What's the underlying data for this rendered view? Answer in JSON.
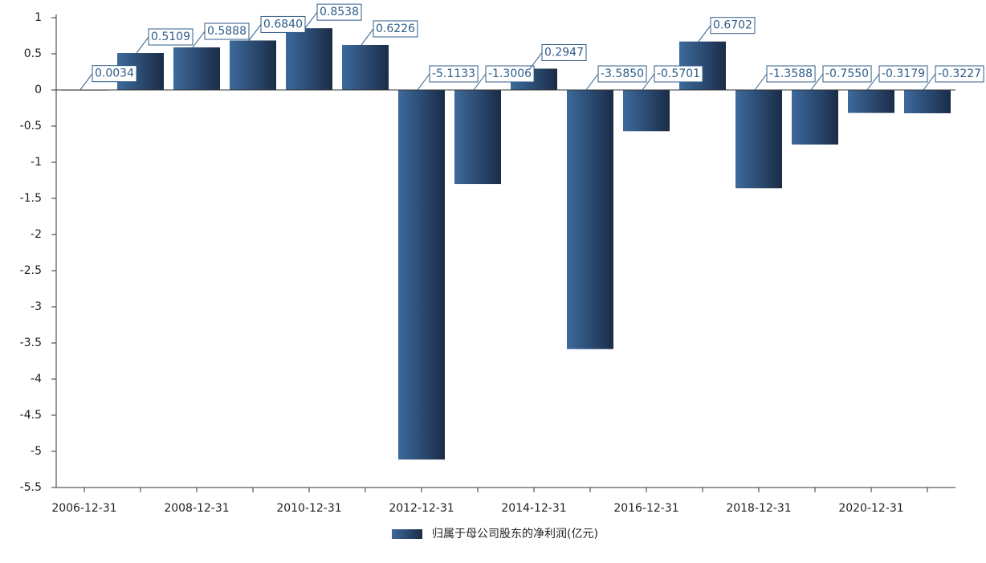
{
  "chart_data": {
    "type": "bar",
    "categories": [
      "2006-12-31",
      null,
      "2008-12-31",
      null,
      "2010-12-31",
      null,
      "2012-12-31",
      null,
      "2014-12-31",
      null,
      "2016-12-31",
      null,
      "2018-12-31",
      null,
      "2020-12-31",
      null
    ],
    "series": [
      {
        "name": "归属于母公司股东的净利润(亿元)",
        "color": "#3d6a9c",
        "values": [
          0.0034,
          0.5109,
          0.5888,
          0.684,
          0.8538,
          0.6226,
          -5.1133,
          -1.3006,
          0.2947,
          -3.585,
          -0.5701,
          0.6702,
          -1.3588,
          -0.755,
          -0.3179,
          -0.3227
        ],
        "value_labels": [
          "0.0034",
          "0.5109",
          "0.5888",
          "0.6840",
          "0.8538",
          "0.6226",
          "-5.1133",
          "-1.3006",
          "0.2947",
          "-3.5850",
          "-0.5701",
          "0.6702",
          "-1.3588",
          "-0.7550",
          "-0.3179",
          "-0.3227"
        ]
      }
    ],
    "ylim": [
      -5.5,
      1
    ],
    "yticks": [
      1,
      0.5,
      0,
      -0.5,
      -1,
      -1.5,
      -2,
      -2.5,
      -3,
      -3.5,
      -4,
      -4.5,
      -5,
      -5.5
    ]
  }
}
